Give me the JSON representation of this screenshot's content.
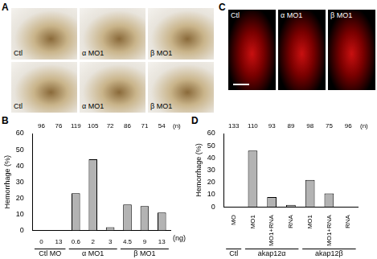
{
  "image_panels": [
    {
      "title": "A",
      "rows": [
        [
          "Ctl",
          "α MO1",
          "β MO1"
        ],
        [
          "Ctl",
          "α MO1",
          "β MO1"
        ]
      ]
    },
    {
      "title": "C",
      "rows": [
        [
          "Ctl",
          "α MO1",
          "β MO1"
        ]
      ]
    }
  ],
  "chart_data": [
    {
      "title": "B",
      "type": "bar",
      "categories": [
        "0",
        "13",
        "0.6",
        "2",
        "3",
        "4.5",
        "9",
        "13"
      ],
      "values": [
        0,
        0,
        23,
        44,
        2,
        16,
        15,
        11
      ],
      "n": [
        96,
        76,
        119,
        105,
        72,
        86,
        71,
        54
      ],
      "n_label": "(n)",
      "xlabel": "(ng)",
      "groups": [
        {
          "label": "Ctl MO",
          "count": 2
        },
        {
          "label": "α MO1",
          "count": 3
        },
        {
          "label": "β MO1",
          "count": 3
        }
      ],
      "ylabel": "Hemorrhage (%)",
      "ylim": [
        0,
        60
      ],
      "yticks": [
        0,
        10,
        20,
        30,
        40,
        50,
        60
      ],
      "color": "#b3b3b3",
      "grid": false
    },
    {
      "title": "D",
      "type": "bar",
      "categories": [
        "MO",
        "MO1",
        "MO1+RNA",
        "RNA",
        "MO1",
        "MO1+RNA",
        "RNA"
      ],
      "values": [
        0,
        46,
        8,
        1.5,
        22,
        11,
        0
      ],
      "n": [
        133,
        110,
        93,
        89,
        98,
        75,
        96
      ],
      "n_label": "(n)",
      "groups": [
        {
          "label": "Ctl",
          "count": 1
        },
        {
          "label": "akap12α",
          "count": 3
        },
        {
          "label": "akap12β",
          "count": 3
        }
      ],
      "ylabel": "Hemorrhage (%)",
      "ylim": [
        0,
        60
      ],
      "yticks": [
        0,
        10,
        20,
        30,
        40,
        50,
        60
      ],
      "color": "#b3b3b3",
      "grid": false
    }
  ]
}
